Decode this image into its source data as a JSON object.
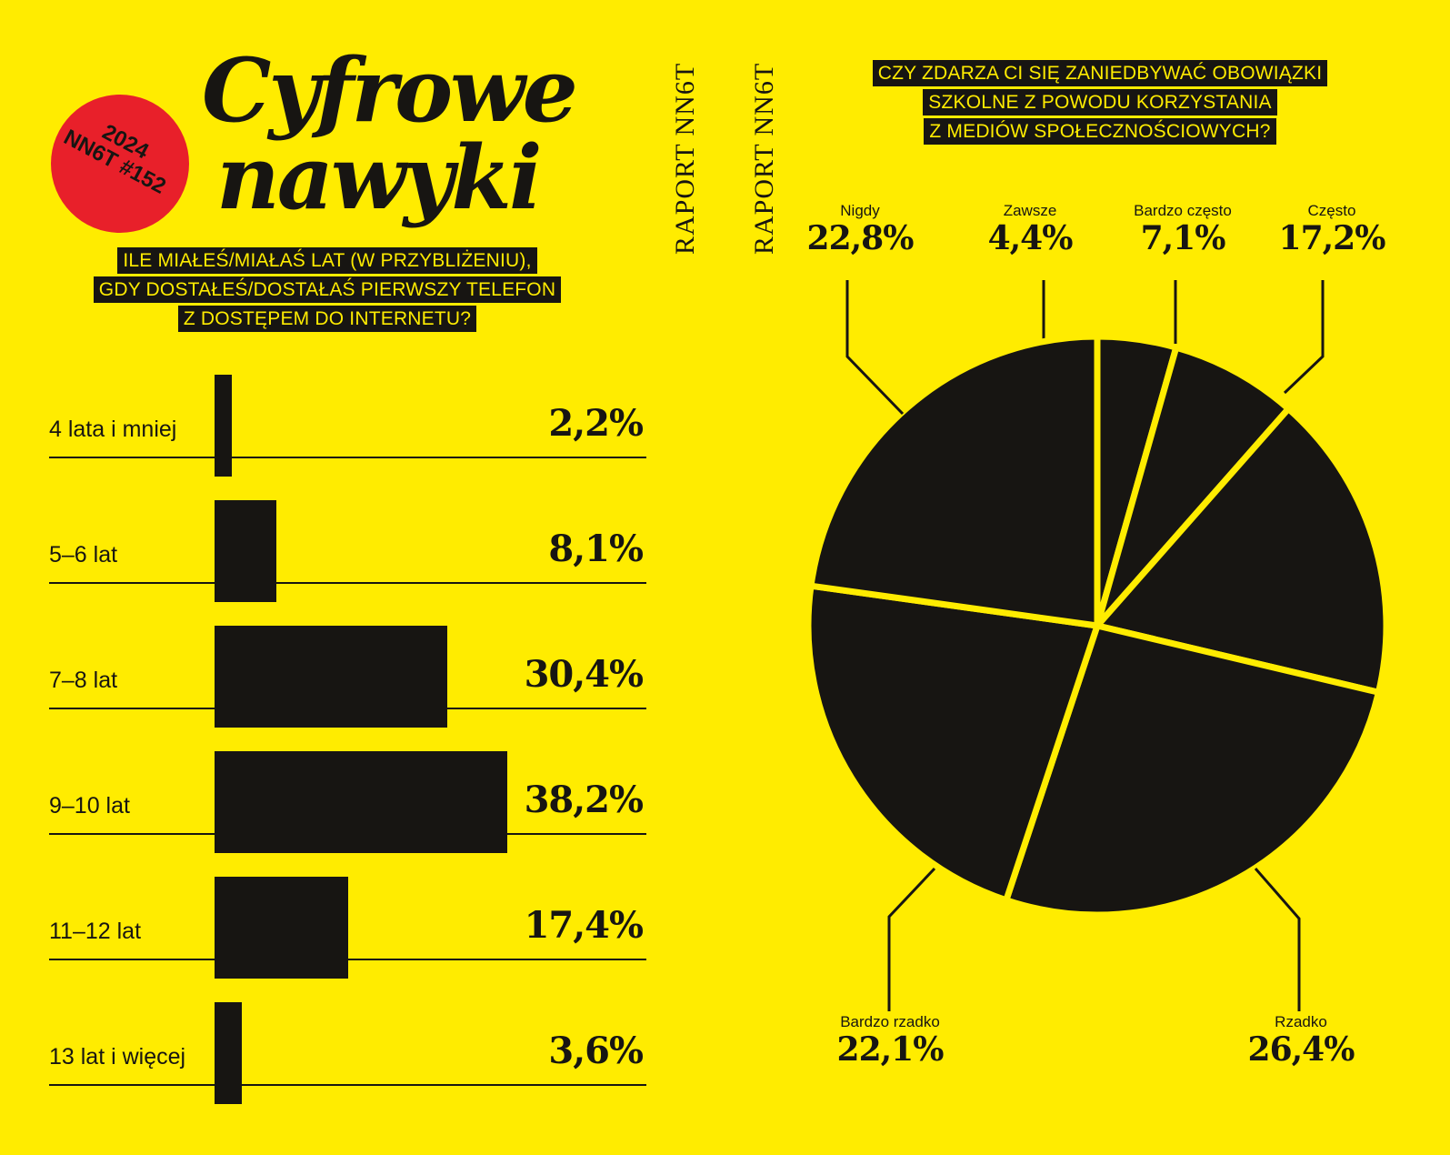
{
  "title": {
    "line1": "Cyfrowe",
    "line2": "nawyki"
  },
  "badge": {
    "year": "2024",
    "code": "NN6T #152"
  },
  "side_label_1": "RAPORT NN6T",
  "side_label_2": "RAPORT NN6T",
  "colors": {
    "background": "#ffec00",
    "ink": "#171512",
    "badge": "#e8202a"
  },
  "chart_data": [
    {
      "type": "bar",
      "orientation": "horizontal",
      "title_lines": [
        "ILE MIAŁEŚ/MIAŁAŚ LAT (W PRZYBLIŻENIU),",
        "GDY DOSTAŁEŚ/DOSTAŁAŚ PIERWSZY TELEFON",
        "Z DOSTĘPEM DO INTERNETU?"
      ],
      "categories": [
        "4 lata i mniej",
        "5–6 lat",
        "7–8 lat",
        "9–10 lat",
        "11–12 lat",
        "13 lat i więcej"
      ],
      "values": [
        2.2,
        8.1,
        30.4,
        38.2,
        17.4,
        3.6
      ],
      "value_labels": [
        "2,2%",
        "8,1%",
        "30,4%",
        "38,2%",
        "17,4%",
        "3,6%"
      ],
      "unit": "%"
    },
    {
      "type": "pie",
      "title_lines": [
        "CZY ZDARZA CI SIĘ ZANIEDBYWAĆ OBOWIĄZKI",
        "SZKOLNE Z POWODU KORZYSTANIA",
        "Z MEDIÓW SPOŁECZNOŚCIOWYCH?"
      ],
      "slices": [
        {
          "label": "Zawsze",
          "value": 4.4,
          "value_label": "4,4%"
        },
        {
          "label": "Bardzo często",
          "value": 7.1,
          "value_label": "7,1%"
        },
        {
          "label": "Często",
          "value": 17.2,
          "value_label": "17,2%"
        },
        {
          "label": "Rzadko",
          "value": 26.4,
          "value_label": "26,4%"
        },
        {
          "label": "Bardzo rzadko",
          "value": 22.1,
          "value_label": "22,1%"
        },
        {
          "label": "Nigdy",
          "value": 22.8,
          "value_label": "22,8%"
        }
      ],
      "unit": "%"
    }
  ]
}
